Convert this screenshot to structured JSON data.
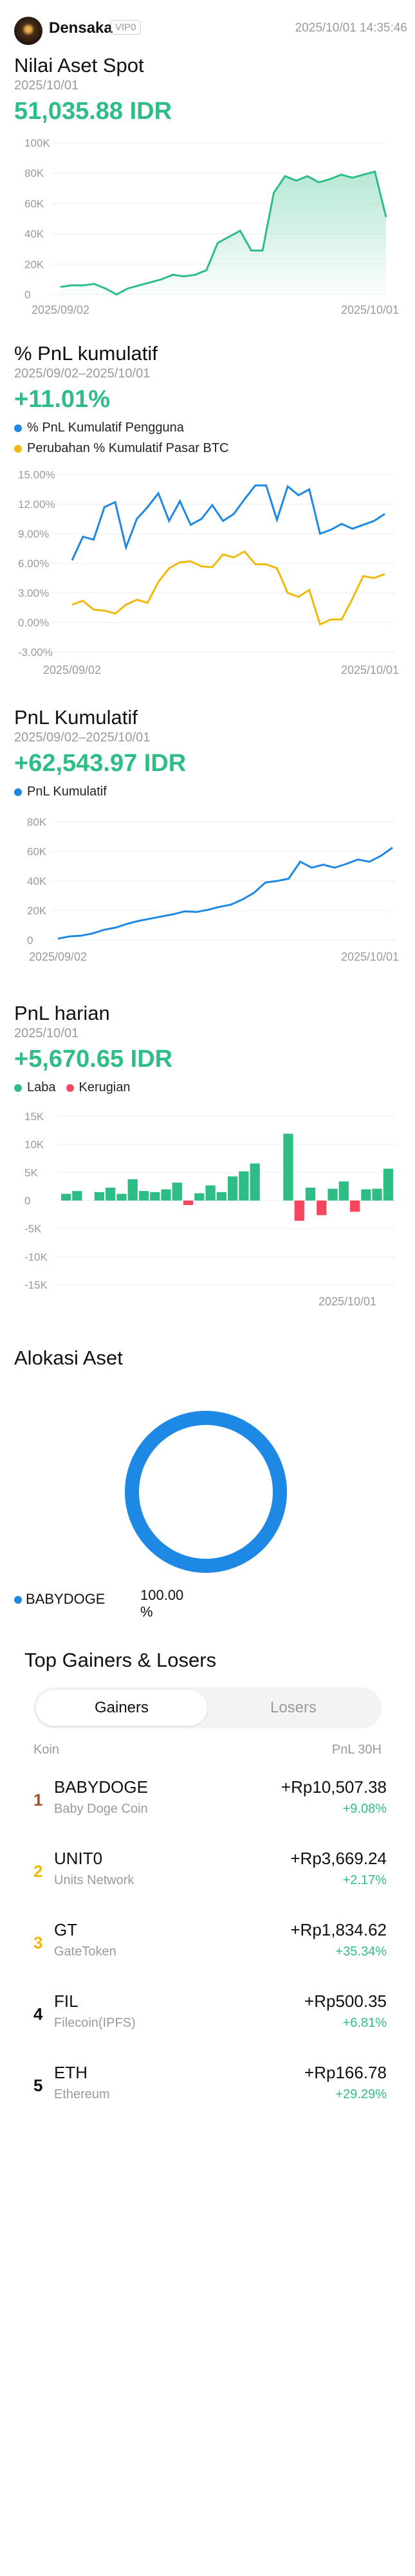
{
  "header": {
    "username": "Densaka",
    "vip": "VIP0",
    "timestamp": "2025/10/01 14:35:46"
  },
  "spot": {
    "title": "Nilai Aset Spot",
    "date": "2025/10/01",
    "value": "51,035.88 IDR",
    "color": "#2ebd85",
    "chart_data": {
      "type": "area",
      "ylim": [
        0,
        100000
      ],
      "yticks": [
        "100K",
        "80K",
        "60K",
        "40K",
        "20K",
        "0"
      ],
      "xticks": [
        "2025/09/02",
        "2025/10/01"
      ],
      "x": [
        "2025/09/02",
        "2025/09/03",
        "2025/09/04",
        "2025/09/05",
        "2025/09/06",
        "2025/09/07",
        "2025/09/08",
        "2025/09/09",
        "2025/09/10",
        "2025/09/11",
        "2025/09/12",
        "2025/09/13",
        "2025/09/14",
        "2025/09/15",
        "2025/09/16",
        "2025/09/17",
        "2025/09/18",
        "2025/09/19",
        "2025/09/20",
        "2025/09/21",
        "2025/09/22",
        "2025/09/23",
        "2025/09/24",
        "2025/09/25",
        "2025/09/26",
        "2025/09/27",
        "2025/09/28",
        "2025/09/29",
        "2025/09/30",
        "2025/10/01"
      ],
      "values": [
        5000,
        6000,
        6000,
        7000,
        4000,
        0,
        4000,
        6000,
        8000,
        10000,
        13000,
        12000,
        13000,
        16000,
        34000,
        38000,
        42000,
        29000,
        29000,
        67000,
        78000,
        75000,
        78000,
        74000,
        76000,
        79000,
        77000,
        79000,
        81000,
        51036
      ]
    }
  },
  "pnl_pct": {
    "title": "% PnL kumulatif",
    "date": "2025/09/02–2025/10/01",
    "value": "+11.01%",
    "legend": [
      "% PnL Kumulatif Pengguna",
      "Perubahan % Kumulatif Pasar BTC"
    ],
    "colors": [
      "#1e88e5",
      "#f0b90b"
    ],
    "chart_data": {
      "type": "line",
      "ylim": [
        -3,
        15
      ],
      "yticks": [
        "15.00%",
        "12.00%",
        "9.00%",
        "6.00%",
        "3.00%",
        "0.00%",
        "-3.00%"
      ],
      "xticks": [
        "2025/09/02",
        "2025/10/01"
      ],
      "x": [
        "2025/09/02",
        "2025/09/03",
        "2025/09/04",
        "2025/09/05",
        "2025/09/06",
        "2025/09/07",
        "2025/09/08",
        "2025/09/09",
        "2025/09/10",
        "2025/09/11",
        "2025/09/12",
        "2025/09/13",
        "2025/09/14",
        "2025/09/15",
        "2025/09/16",
        "2025/09/17",
        "2025/09/18",
        "2025/09/19",
        "2025/09/20",
        "2025/09/21",
        "2025/09/22",
        "2025/09/23",
        "2025/09/24",
        "2025/09/25",
        "2025/09/26",
        "2025/09/27",
        "2025/09/28",
        "2025/09/29",
        "2025/09/30",
        "2025/10/01"
      ],
      "series": [
        {
          "name": "% PnL Kumulatif Pengguna",
          "values": [
            6.3,
            8.7,
            8.4,
            11.7,
            12.2,
            7.6,
            10.5,
            11.7,
            13.1,
            10.3,
            12.3,
            9.9,
            10.5,
            11.9,
            10.3,
            11.0,
            12.5,
            13.9,
            13.9,
            10.4,
            13.8,
            12.9,
            13.5,
            9.0,
            9.4,
            10.0,
            9.5,
            9.9,
            10.3,
            11.0
          ]
        },
        {
          "name": "Perubahan % Kumulatif Pasar BTC",
          "values": [
            1.8,
            2.2,
            1.3,
            1.2,
            0.9,
            1.8,
            2.3,
            2.0,
            4.1,
            5.5,
            6.1,
            6.2,
            5.7,
            5.6,
            6.9,
            6.6,
            7.2,
            5.9,
            5.9,
            5.5,
            3.0,
            2.6,
            3.3,
            -0.2,
            0.3,
            0.3,
            2.4,
            4.7,
            4.5,
            4.9
          ]
        }
      ]
    }
  },
  "pnl_cum": {
    "title": "PnL Kumulatif",
    "date": "2025/09/02–2025/10/01",
    "value": "+62,543.97 IDR",
    "legend": [
      "PnL Kumulatif"
    ],
    "color": "#1e88e5",
    "chart_data": {
      "type": "line",
      "ylim": [
        0,
        80000
      ],
      "yticks": [
        "80K",
        "60K",
        "40K",
        "20K",
        "0"
      ],
      "xticks": [
        "2025/09/02",
        "2025/10/01"
      ],
      "x": [
        "2025/09/02",
        "2025/09/03",
        "2025/09/04",
        "2025/09/05",
        "2025/09/06",
        "2025/09/07",
        "2025/09/08",
        "2025/09/09",
        "2025/09/10",
        "2025/09/11",
        "2025/09/12",
        "2025/09/13",
        "2025/09/14",
        "2025/09/15",
        "2025/09/16",
        "2025/09/17",
        "2025/09/18",
        "2025/09/19",
        "2025/09/20",
        "2025/09/21",
        "2025/09/22",
        "2025/09/23",
        "2025/09/24",
        "2025/09/25",
        "2025/09/26",
        "2025/09/27",
        "2025/09/28",
        "2025/09/29",
        "2025/09/30",
        "2025/10/01"
      ],
      "values": [
        1000,
        2500,
        3000,
        4500,
        7000,
        8500,
        11000,
        13000,
        14500,
        16000,
        17500,
        19500,
        19000,
        20500,
        22500,
        24000,
        27500,
        32000,
        39000,
        40000,
        41500,
        53000,
        49000,
        51000,
        49000,
        51500,
        54500,
        53000,
        57000,
        62544
      ]
    }
  },
  "pnl_daily": {
    "title": "PnL harian",
    "date": "2025/10/01",
    "value": "+5,670.65 IDR",
    "legend": [
      "Laba",
      "Kerugian"
    ],
    "colors": [
      "#2ebd85",
      "#f6465d"
    ],
    "chart_data": {
      "type": "bar",
      "ylim": [
        -15000,
        15000
      ],
      "yticks": [
        "15K",
        "10K",
        "5K",
        "0",
        "-5K",
        "-10K",
        "-15K"
      ],
      "xticks": [
        "2025/10/01"
      ],
      "x": [
        "2025/09/02",
        "2025/09/03",
        "2025/09/04",
        "2025/09/05",
        "2025/09/06",
        "2025/09/07",
        "2025/09/08",
        "2025/09/09",
        "2025/09/10",
        "2025/09/11",
        "2025/09/12",
        "2025/09/13",
        "2025/09/14",
        "2025/09/15",
        "2025/09/16",
        "2025/09/17",
        "2025/09/18",
        "2025/09/19",
        "2025/09/20",
        "2025/09/21",
        "2025/09/22",
        "2025/09/23",
        "2025/09/24",
        "2025/09/25",
        "2025/09/26",
        "2025/09/27",
        "2025/09/28",
        "2025/09/29",
        "2025/09/30",
        "2025/10/01"
      ],
      "values": [
        1200,
        1700,
        0,
        1500,
        2300,
        1200,
        3800,
        1700,
        1500,
        2000,
        3200,
        -800,
        1300,
        2700,
        1500,
        4300,
        5200,
        6600,
        0,
        0,
        11900,
        -3600,
        2300,
        -2600,
        2100,
        3400,
        -2000,
        2000,
        2100,
        5671
      ]
    }
  },
  "alloc": {
    "title": "Alokasi Aset",
    "color": "#1e88e5",
    "items": [
      {
        "name": "BABYDOGE",
        "pct": "100.00",
        "pct_sign": "%"
      }
    ],
    "chart_data": {
      "type": "pie",
      "labels": [
        "BABYDOGE"
      ],
      "values": [
        100
      ]
    }
  },
  "gl": {
    "title": "Top Gainers & Losers",
    "tabs": [
      "Gainers",
      "Losers"
    ],
    "col_coin": "Koin",
    "col_pnl": "PnL 30H",
    "rank_colors": [
      "#a0522d",
      "#f0b90b",
      "#f0b90b",
      "#111111",
      "#111111"
    ],
    "rows": [
      {
        "rank": "1",
        "symbol": "BABYDOGE",
        "name": "Baby Doge Coin",
        "pnl": "+Rp10,507.38",
        "pct": "+9.08%"
      },
      {
        "rank": "2",
        "symbol": "UNIT0",
        "name": "Units Network",
        "pnl": "+Rp3,669.24",
        "pct": "+2.17%"
      },
      {
        "rank": "3",
        "symbol": "GT",
        "name": "GateToken",
        "pnl": "+Rp1,834.62",
        "pct": "+35.34%"
      },
      {
        "rank": "4",
        "symbol": "FIL",
        "name": "Filecoin(IPFS)",
        "pnl": "+Rp500.35",
        "pct": "+6.81%"
      },
      {
        "rank": "5",
        "symbol": "ETH",
        "name": "Ethereum",
        "pnl": "+Rp166.78",
        "pct": "+29.29%"
      }
    ]
  }
}
